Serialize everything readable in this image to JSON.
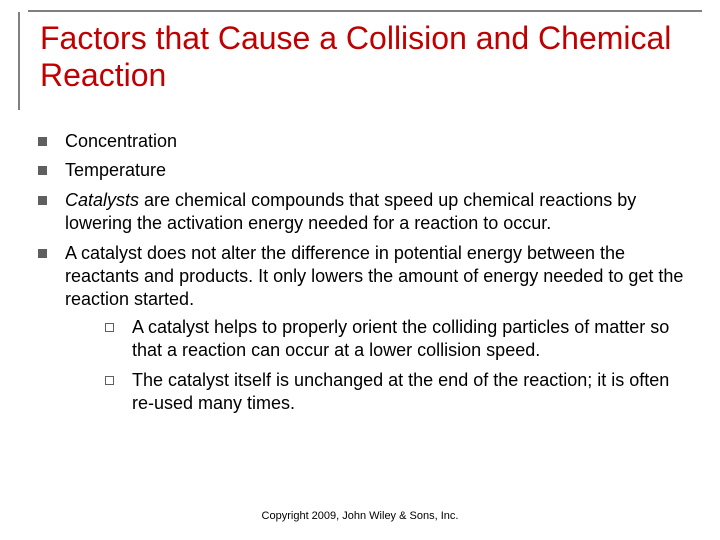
{
  "title": "Factors that Cause a Collision and Chemical Reaction",
  "title_color": "#c00000",
  "title_fontsize": 32,
  "body_fontsize": 18,
  "frame_border_color": "#808080",
  "bullet_color": "#5f5f5f",
  "bullets": [
    {
      "text": "Concentration"
    },
    {
      "text": "Temperature"
    },
    {
      "html": "<span class=\"italic\">Catalysts</span> are chemical compounds that speed up chemical reactions by lowering the activation energy needed for a reaction to occur."
    },
    {
      "text": "A catalyst does not alter the difference in potential energy between the reactants and products. It only lowers the amount of energy needed to get the reaction started.",
      "sub": [
        {
          "text": "A catalyst helps to properly orient the colliding particles of matter so that a reaction can occur at a lower collision speed."
        },
        {
          "text": "The catalyst itself is unchanged at the end of the reaction; it is often re-used many times."
        }
      ]
    }
  ],
  "copyright": "Copyright 2009, John Wiley & Sons, Inc."
}
